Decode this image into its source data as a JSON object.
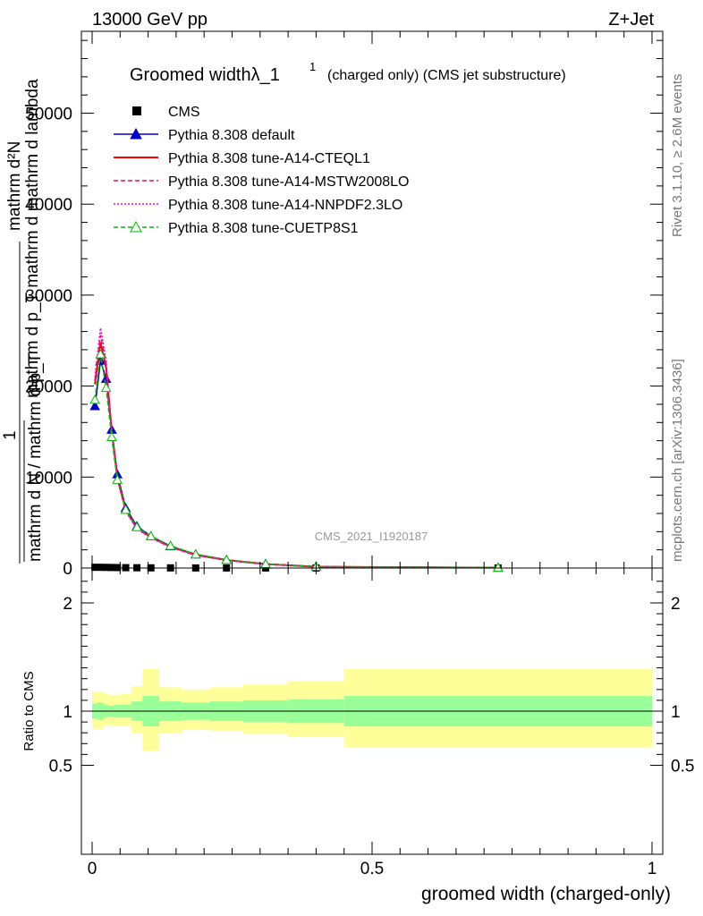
{
  "header": {
    "energy": "13000 GeV pp",
    "process": "Z+Jet"
  },
  "side": {
    "rivet": "Rivet 3.1.10, ≥ 2.6M events",
    "mcplots": "mcplots.cern.ch [arXiv:1306.3436]"
  },
  "watermark": "CMS_2021_I1920187",
  "colors": {
    "cms": "#000000",
    "default": "#0000cc",
    "cteql1": "#ff0000",
    "mstw": "#ff0066",
    "nnpdf": "#ff00cc",
    "cuetp8s1": "#00bb00",
    "band_inner": "#99ff99",
    "band_outer": "#ffff99"
  },
  "chart_data": [
    {
      "type": "line",
      "title_main": "Groomed widthλ_1",
      "title_sup": "1",
      "title_tail": "(charged only) (CMS jet substructure)",
      "ylabel_top": "mathrm d²N",
      "ylabel_mid": "mathrm d p_T mathrm d mathrm d lambda",
      "ylabel_one": "1",
      "ylabel_bottom": "mathrm d N / mathrm d p_T",
      "xlim": [
        0,
        1
      ],
      "ylim": [
        0,
        59000
      ],
      "yticks": [
        0,
        10000,
        20000,
        30000,
        40000,
        50000
      ],
      "ytick_labels": [
        "0",
        "10000",
        "20000",
        "30000",
        "40000",
        "50000"
      ],
      "x_bins": [
        0.0,
        0.01,
        0.02,
        0.03,
        0.04,
        0.05,
        0.07,
        0.09,
        0.12,
        0.16,
        0.21,
        0.27,
        0.35,
        0.45,
        1.0
      ],
      "x": [
        0.005,
        0.015,
        0.025,
        0.035,
        0.045,
        0.06,
        0.08,
        0.105,
        0.14,
        0.185,
        0.24,
        0.31,
        0.4,
        0.725
      ],
      "series": [
        {
          "name": "CMS",
          "key": "cms",
          "marker": "square",
          "values": [
            80,
            80,
            70,
            60,
            50,
            40,
            30,
            20,
            15,
            10,
            8,
            5,
            3,
            1
          ]
        },
        {
          "name": "Pythia 8.308 default",
          "key": "default",
          "marker": "triangle",
          "values": [
            17800,
            22800,
            20800,
            15200,
            10300,
            6600,
            4600,
            3500,
            2400,
            1500,
            900,
            450,
            150,
            40
          ]
        },
        {
          "name": "Pythia 8.308 tune-A14-CTEQL1",
          "key": "cteql1",
          "marker": "none",
          "values": [
            20200,
            24800,
            22000,
            15100,
            10000,
            6400,
            4400,
            3400,
            2350,
            1450,
            870,
            430,
            140,
            35
          ]
        },
        {
          "name": "Pythia 8.308 tune-A14-MSTW2008LO",
          "key": "mstw",
          "marker": "none",
          "values": [
            20600,
            25600,
            22400,
            15000,
            9900,
            6300,
            4350,
            3350,
            2300,
            1420,
            850,
            420,
            140,
            35
          ]
        },
        {
          "name": "Pythia 8.308 tune-A14-NNPDF2.3LO",
          "key": "nnpdf",
          "marker": "none",
          "values": [
            21000,
            26400,
            22800,
            14900,
            9800,
            6200,
            4300,
            3300,
            2280,
            1400,
            840,
            410,
            135,
            35
          ]
        },
        {
          "name": "Pythia 8.308 tune-CUETP8S1",
          "key": "cuetp8s1",
          "marker": "open-triangle",
          "values": [
            18500,
            23500,
            19800,
            14400,
            9700,
            6400,
            4500,
            3500,
            2450,
            1500,
            900,
            440,
            150,
            40
          ]
        }
      ]
    },
    {
      "type": "area",
      "ylabel": "Ratio to CMS",
      "xlabel": "groomed width (charged-only)",
      "xlim": [
        0,
        1
      ],
      "ylim": [
        0.4,
        2.3
      ],
      "yticks": [
        0.5,
        1,
        2
      ],
      "ytick_labels": [
        "0.5",
        "1",
        "2"
      ],
      "xticks": [
        0,
        0.5,
        1
      ],
      "xtick_labels": [
        "0",
        "0.5",
        "1"
      ],
      "x_bins": [
        0.0,
        0.01,
        0.02,
        0.03,
        0.04,
        0.05,
        0.07,
        0.09,
        0.12,
        0.16,
        0.21,
        0.27,
        0.35,
        0.45,
        1.0
      ],
      "inner_band": [
        [
          0.93,
          1.07
        ],
        [
          0.92,
          1.08
        ],
        [
          0.94,
          1.06
        ],
        [
          0.95,
          1.05
        ],
        [
          0.94,
          1.06
        ],
        [
          0.94,
          1.06
        ],
        [
          0.91,
          1.09
        ],
        [
          0.86,
          1.14
        ],
        [
          0.91,
          1.09
        ],
        [
          0.92,
          1.08
        ],
        [
          0.91,
          1.09
        ],
        [
          0.9,
          1.1
        ],
        [
          0.89,
          1.11
        ],
        [
          0.86,
          1.14
        ]
      ],
      "outer_band": [
        [
          0.84,
          1.18
        ],
        [
          0.83,
          1.18
        ],
        [
          0.86,
          1.16
        ],
        [
          0.87,
          1.15
        ],
        [
          0.86,
          1.15
        ],
        [
          0.86,
          1.16
        ],
        [
          0.8,
          1.23
        ],
        [
          0.63,
          1.39
        ],
        [
          0.8,
          1.22
        ],
        [
          0.83,
          1.2
        ],
        [
          0.82,
          1.22
        ],
        [
          0.79,
          1.25
        ],
        [
          0.76,
          1.28
        ],
        [
          0.67,
          1.39
        ]
      ],
      "reference": 1
    }
  ]
}
